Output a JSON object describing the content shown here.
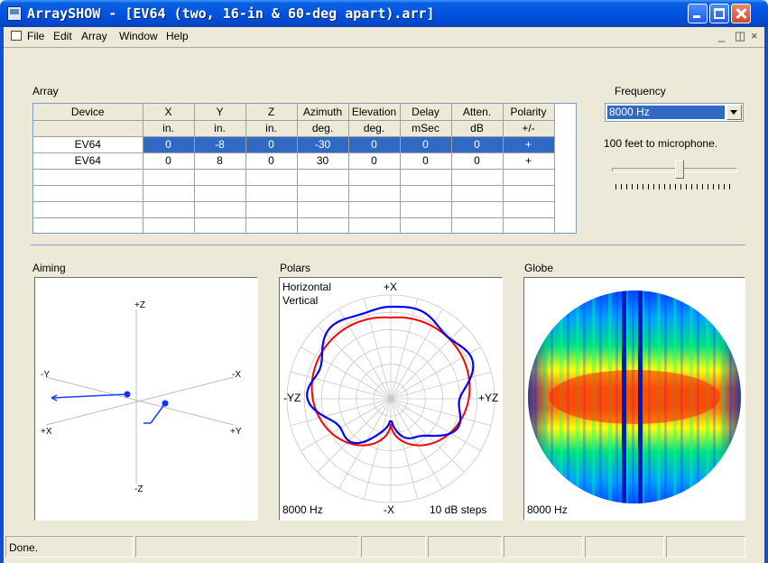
{
  "window": {
    "title": "ArraySHOW - [EV64 (two, 16-in & 60-deg apart).arr]"
  },
  "menu": {
    "items": [
      "File",
      "Edit",
      "Array",
      "Window",
      "Help"
    ],
    "mdi_controls": [
      "_",
      "̆",
      "×"
    ]
  },
  "array_section": {
    "label": "Array",
    "columns": [
      "Device",
      "X",
      "Y",
      "Z",
      "Azimuth",
      "Elevation",
      "Delay",
      "Atten.",
      "Polarity"
    ],
    "units": [
      "",
      "in.",
      "in.",
      "in.",
      "deg.",
      "deg.",
      "mSec",
      "dB",
      "+/-"
    ],
    "rows": [
      [
        "EV64",
        "0",
        "-8",
        "0",
        "-30",
        "0",
        "0",
        "0",
        "+"
      ],
      [
        "EV64",
        "0",
        "8",
        "0",
        "30",
        "0",
        "0",
        "0",
        "+"
      ]
    ],
    "selected_row": 0
  },
  "frequency": {
    "label": "Frequency",
    "selected": "8000 Hz",
    "distance_text": "100 feet to microphone.",
    "slider_position": 0.55
  },
  "aiming": {
    "label": "Aiming",
    "axes": {
      "pz": "+Z",
      "mz": "-Z",
      "my": "-Y",
      "mx": "-X",
      "px": "+X",
      "py": "+Y"
    }
  },
  "polars": {
    "label": "Polars",
    "legend_h": "Horizontal",
    "legend_v": "Vertical",
    "top": "+X",
    "bottom": "-X",
    "left": "-YZ",
    "right": "+YZ",
    "freq": "8000 Hz",
    "steps": "10 dB steps",
    "colors": {
      "horizontal": "#0000ff",
      "vertical": "#ff0000"
    }
  },
  "globe": {
    "label": "Globe",
    "freq": "8000 Hz"
  },
  "status": {
    "text": "Done."
  }
}
